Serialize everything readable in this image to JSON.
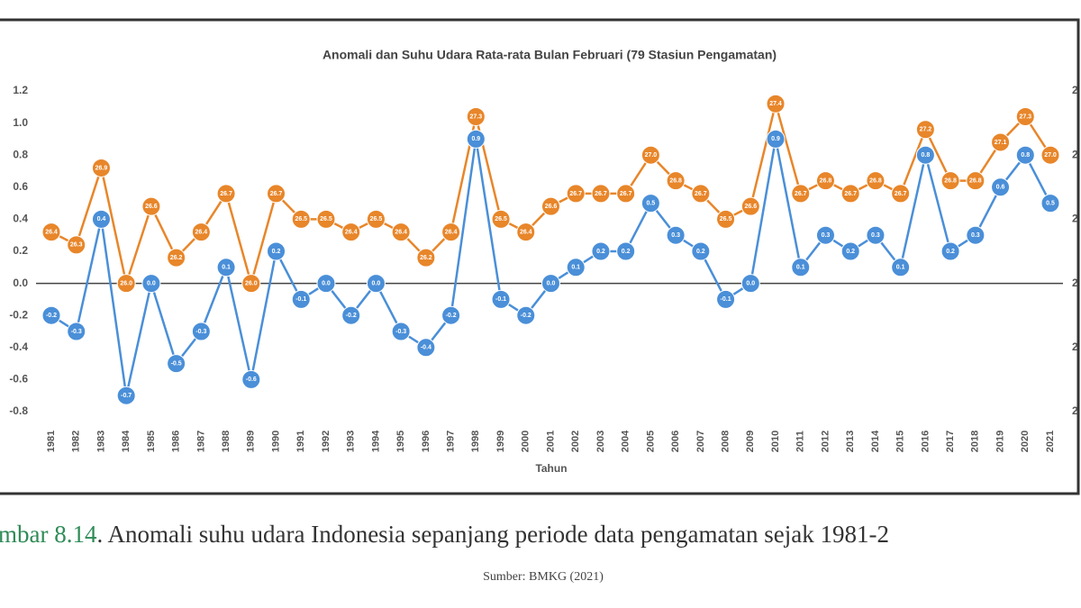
{
  "chart_data": {
    "type": "line",
    "title": "Anomali dan Suhu Udara Rata-rata Bulan Februari (79 Stasiun Pengamatan)",
    "x_label": "Tahun",
    "categories": [
      "1981",
      "1982",
      "1983",
      "1984",
      "1985",
      "1986",
      "1987",
      "1988",
      "1989",
      "1990",
      "1991",
      "1992",
      "1993",
      "1994",
      "1995",
      "1996",
      "1997",
      "1998",
      "1999",
      "2000",
      "2001",
      "2002",
      "2003",
      "2004",
      "2005",
      "2006",
      "2007",
      "2008",
      "2009",
      "2010",
      "2011",
      "2012",
      "2013",
      "2014",
      "2015",
      "2016",
      "2017",
      "2018",
      "2019",
      "2020",
      "2021"
    ],
    "series": [
      {
        "name": null,
        "color": "#e8862a",
        "axis": "y2",
        "values": [
          26.4,
          26.3,
          26.9,
          26.0,
          26.6,
          26.2,
          26.4,
          26.7,
          26.0,
          26.7,
          26.5,
          26.5,
          26.4,
          26.5,
          26.4,
          26.2,
          26.4,
          27.3,
          26.5,
          26.4,
          26.6,
          26.7,
          26.7,
          26.7,
          27.0,
          26.8,
          26.7,
          26.5,
          26.6,
          27.4,
          26.7,
          26.8,
          26.7,
          26.8,
          26.7,
          27.2,
          26.8,
          26.8,
          27.1,
          27.3,
          27.0
        ],
        "value_labels": [
          "26.4",
          "26.3",
          "26.9",
          "26.0",
          "26.6",
          "26.2",
          "26.4",
          "26.7",
          "26.0",
          "26.7",
          "26.5",
          "26.5",
          "26.4",
          "26.5",
          "26.4",
          "26.2",
          "26.4",
          "27.3",
          "26.5",
          "26.4",
          "26.6",
          "26.7",
          "26.7",
          "26.7",
          "27.0",
          "26.8",
          "26.7",
          "26.5",
          "26.6",
          "27.4",
          "26.7",
          "26.8",
          "26.7",
          "26.8",
          "26.7",
          "27.2",
          "26.8",
          "26.8",
          "27.1",
          "27.3",
          "27.0"
        ]
      },
      {
        "name": null,
        "color": "#4a8fd8",
        "values": [
          -0.2,
          -0.3,
          0.4,
          -0.7,
          0.0,
          -0.5,
          -0.3,
          0.1,
          -0.6,
          0.2,
          -0.1,
          0.0,
          -0.2,
          0.0,
          -0.3,
          -0.4,
          -0.2,
          0.9,
          -0.1,
          -0.2,
          0.0,
          0.1,
          0.2,
          0.2,
          0.5,
          0.3,
          0.2,
          -0.1,
          0.0,
          0.9,
          0.1,
          0.3,
          0.2,
          0.3,
          0.1,
          0.8,
          0.2,
          0.3,
          0.6,
          0.8,
          0.5
        ],
        "value_labels": [
          "-0.2",
          "-0.3",
          "0.4",
          "-0.7",
          "0.0",
          "-0.5",
          "-0.3",
          "0.1",
          "-0.6",
          "0.2",
          "-0.1",
          "0.0",
          "-0.2",
          "0.0",
          "-0.3",
          "-0.4",
          "-0.2",
          "0.9",
          "-0.1",
          "-0.2",
          "0.0",
          "0.1",
          "0.2",
          "0.2",
          "0.5",
          "0.3",
          "0.2",
          "-0.1",
          "0.0",
          "0.9",
          "0.1",
          "0.3",
          "0.2",
          "0.3",
          "0.1",
          "0.8",
          "0.2",
          "0.3",
          "0.6",
          "0.8",
          "0.5"
        ]
      }
    ],
    "ylim": [
      -0.8,
      1.2
    ],
    "yticks": [
      -0.8,
      -0.6,
      -0.4,
      -0.2,
      {
        "value": 0,
        "label": "0.0"
      },
      0.2,
      0.4,
      0.6,
      0.8,
      {
        "value": 1,
        "label": "1.0"
      },
      1.2
    ],
    "y2lim": [
      25.0,
      27.5
    ],
    "y2ticks": [
      {
        "value": 25.0,
        "label": "2"
      },
      {
        "value": 25.5,
        "label": "2"
      },
      {
        "value": 26.0,
        "label": "2"
      },
      {
        "value": 26.5,
        "label": "2"
      },
      {
        "value": 27.0,
        "label": "2"
      },
      {
        "value": 27.5,
        "label": "2"
      }
    ],
    "grid": false
  },
  "caption": {
    "label": "mbar 8.14",
    "text": ". Anomali suhu udara Indonesia sepanjang periode data pengamatan sejak 1981-2",
    "source": "Sumber: BMKG (2021)"
  }
}
